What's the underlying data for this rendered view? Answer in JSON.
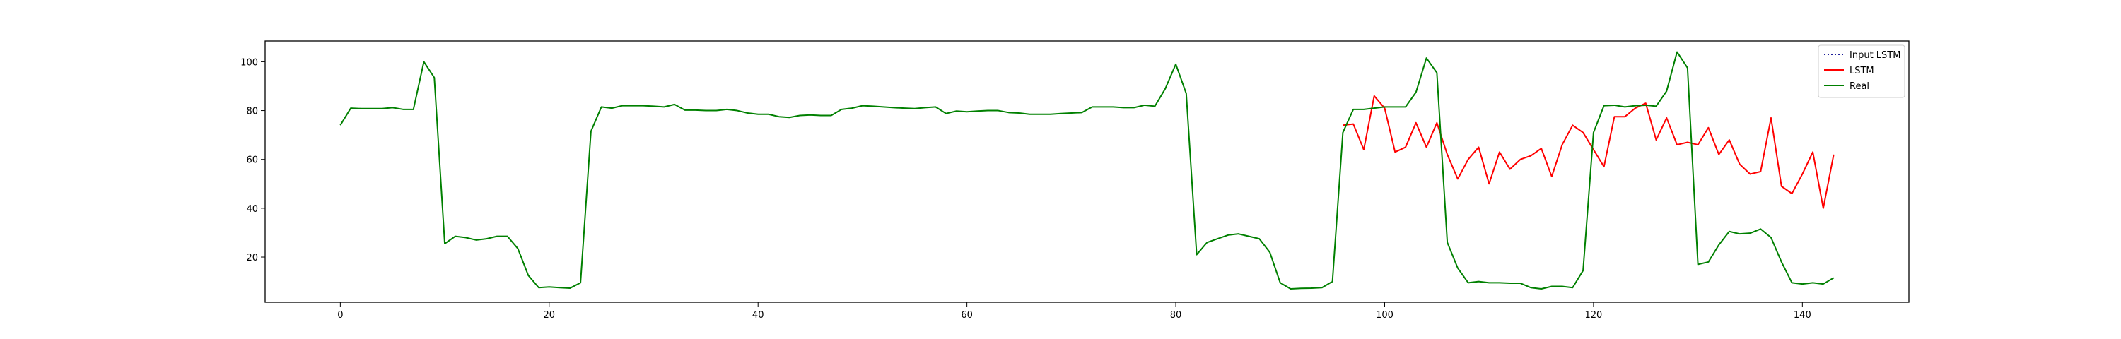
{
  "chart_data": {
    "type": "line",
    "title": "",
    "xlabel": "",
    "ylabel": "",
    "xlim": [
      -7.2,
      150.2
    ],
    "ylim": [
      1.5,
      108.5
    ],
    "xticks": [
      0,
      20,
      40,
      60,
      80,
      100,
      120,
      140
    ],
    "yticks": [
      20,
      40,
      60,
      80,
      100
    ],
    "grid": false,
    "legend_position": "top-right",
    "series": [
      {
        "name": "Input LSTM",
        "color": "#1f1f9a",
        "style": "dotted",
        "x": [],
        "values": []
      },
      {
        "name": "LSTM",
        "color": "#ff0000",
        "style": "solid",
        "x": [
          96,
          97,
          98,
          99,
          100,
          101,
          102,
          103,
          104,
          105,
          106,
          107,
          108,
          109,
          110,
          111,
          112,
          113,
          114,
          115,
          116,
          117,
          118,
          119,
          120,
          121,
          122,
          123,
          124,
          125,
          126,
          127,
          128,
          129,
          130,
          131,
          132,
          133,
          134,
          135,
          136,
          137,
          138,
          139,
          140,
          141,
          142,
          143
        ],
        "values": [
          74,
          74.5,
          64,
          86,
          81,
          63,
          65,
          75,
          65,
          75,
          62,
          52,
          60,
          65,
          50,
          63,
          56,
          60,
          61.5,
          64.5,
          53,
          66,
          74,
          71,
          64,
          57,
          77.5,
          77.5,
          81,
          83,
          68,
          77,
          66,
          67,
          66,
          73,
          62,
          68,
          58,
          54,
          55,
          77,
          49,
          46,
          54,
          63,
          40,
          62
        ]
      },
      {
        "name": "Real",
        "color": "#008000",
        "style": "solid",
        "x": [
          0,
          1,
          2,
          3,
          4,
          5,
          6,
          7,
          8,
          9,
          10,
          11,
          12,
          13,
          14,
          15,
          16,
          17,
          18,
          19,
          20,
          21,
          22,
          23,
          24,
          25,
          26,
          27,
          28,
          29,
          30,
          31,
          32,
          33,
          34,
          35,
          36,
          37,
          38,
          39,
          40,
          41,
          42,
          43,
          44,
          45,
          46,
          47,
          48,
          49,
          50,
          51,
          52,
          53,
          54,
          55,
          56,
          57,
          58,
          59,
          60,
          61,
          62,
          63,
          64,
          65,
          66,
          67,
          68,
          69,
          70,
          71,
          72,
          73,
          74,
          75,
          76,
          77,
          78,
          79,
          80,
          81,
          82,
          83,
          84,
          85,
          86,
          87,
          88,
          89,
          90,
          91,
          92,
          93,
          94,
          95,
          96,
          97,
          98,
          99,
          100,
          101,
          102,
          103,
          104,
          105,
          106,
          107,
          108,
          109,
          110,
          111,
          112,
          113,
          114,
          115,
          116,
          117,
          118,
          119,
          120,
          121,
          122,
          123,
          124,
          125,
          126,
          127,
          128,
          129,
          130,
          131,
          132,
          133,
          134,
          135,
          136,
          137,
          138,
          139,
          140,
          141,
          142,
          143
        ],
        "values": [
          74,
          81,
          80.8,
          80.8,
          80.8,
          81.2,
          80.5,
          80.5,
          100,
          93.5,
          25.5,
          28.5,
          28,
          27,
          27.5,
          28.5,
          28.5,
          23.5,
          12.5,
          7.5,
          7.8,
          7.5,
          7.3,
          9.5,
          71.5,
          81.5,
          81,
          82,
          82,
          82,
          81.8,
          81.5,
          82.5,
          80.2,
          80.2,
          80,
          80,
          80.5,
          80,
          79,
          78.5,
          78.5,
          77.5,
          77.2,
          78,
          78.2,
          78,
          78,
          80.5,
          81,
          82,
          81.8,
          81.5,
          81.2,
          81,
          80.8,
          81.2,
          81.5,
          78.8,
          79.8,
          79.5,
          79.8,
          80,
          80,
          79.2,
          79,
          78.5,
          78.5,
          78.5,
          78.8,
          79,
          79.2,
          81.5,
          81.5,
          81.5,
          81.2,
          81.2,
          82.2,
          81.8,
          89,
          99,
          87,
          21,
          26,
          27.5,
          29,
          29.5,
          28.5,
          27.5,
          22,
          9.5,
          7,
          7.2,
          7.3,
          7.5,
          10,
          71,
          80.5,
          80.5,
          81,
          81.5,
          81.5,
          81.5,
          87.5,
          101.5,
          95.5,
          26,
          15.5,
          9.5,
          10,
          9.5,
          9.5,
          9.3,
          9.3,
          7.5,
          7,
          8,
          8,
          7.5,
          14.5,
          71,
          82,
          82.2,
          81.5,
          82,
          82.2,
          81.8,
          88,
          104,
          97.5,
          17,
          18,
          25,
          30.5,
          29.5,
          29.8,
          31.5,
          28,
          18,
          9.5,
          9,
          9.5,
          9,
          11.5
        ]
      }
    ]
  }
}
